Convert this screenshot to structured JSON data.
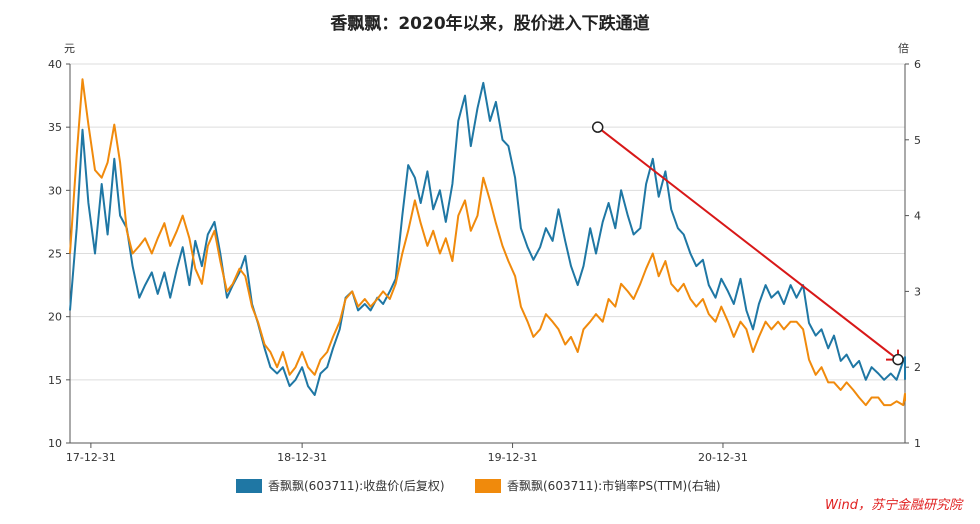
{
  "chart_data": {
    "type": "line",
    "title": "香飘飘：2020年以来，股价进入下跌通道",
    "left_axis": {
      "unit": "元",
      "ylim": [
        10,
        40
      ],
      "ticks": [
        10,
        15,
        20,
        25,
        30,
        35,
        40
      ]
    },
    "right_axis": {
      "unit": "倍",
      "ylim": [
        1,
        6
      ],
      "ticks": [
        1,
        2,
        3,
        4,
        5,
        6
      ]
    },
    "x_ticks": [
      {
        "label": "17-12-31",
        "t": 0.025
      },
      {
        "label": "18-12-31",
        "t": 0.278
      },
      {
        "label": "19-12-31",
        "t": 0.53
      },
      {
        "label": "20-12-31",
        "t": 0.782
      }
    ],
    "series": [
      {
        "name": "香飘飘(603711):收盘价(后复权)",
        "axis": "left",
        "color": "#1f77a4",
        "points": [
          [
            0.0,
            20.5
          ],
          [
            0.008,
            27.0
          ],
          [
            0.015,
            34.8
          ],
          [
            0.022,
            29.0
          ],
          [
            0.03,
            25.0
          ],
          [
            0.038,
            30.5
          ],
          [
            0.045,
            26.5
          ],
          [
            0.053,
            32.5
          ],
          [
            0.06,
            28.0
          ],
          [
            0.068,
            27.0
          ],
          [
            0.075,
            24.0
          ],
          [
            0.083,
            21.5
          ],
          [
            0.09,
            22.5
          ],
          [
            0.098,
            23.5
          ],
          [
            0.105,
            21.8
          ],
          [
            0.113,
            23.5
          ],
          [
            0.12,
            21.5
          ],
          [
            0.128,
            23.8
          ],
          [
            0.135,
            25.5
          ],
          [
            0.143,
            22.5
          ],
          [
            0.15,
            26.0
          ],
          [
            0.158,
            24.0
          ],
          [
            0.165,
            26.5
          ],
          [
            0.173,
            27.5
          ],
          [
            0.18,
            25.0
          ],
          [
            0.188,
            21.5
          ],
          [
            0.195,
            22.5
          ],
          [
            0.203,
            23.5
          ],
          [
            0.21,
            24.8
          ],
          [
            0.218,
            21.0
          ],
          [
            0.225,
            19.5
          ],
          [
            0.233,
            17.5
          ],
          [
            0.24,
            16.0
          ],
          [
            0.248,
            15.5
          ],
          [
            0.255,
            16.0
          ],
          [
            0.263,
            14.5
          ],
          [
            0.27,
            15.0
          ],
          [
            0.278,
            16.0
          ],
          [
            0.285,
            14.5
          ],
          [
            0.293,
            13.8
          ],
          [
            0.3,
            15.5
          ],
          [
            0.308,
            16.0
          ],
          [
            0.315,
            17.5
          ],
          [
            0.323,
            19.0
          ],
          [
            0.33,
            21.5
          ],
          [
            0.338,
            22.0
          ],
          [
            0.345,
            20.5
          ],
          [
            0.353,
            21.0
          ],
          [
            0.36,
            20.5
          ],
          [
            0.368,
            21.5
          ],
          [
            0.375,
            21.0
          ],
          [
            0.383,
            22.0
          ],
          [
            0.39,
            23.0
          ],
          [
            0.398,
            28.0
          ],
          [
            0.405,
            32.0
          ],
          [
            0.413,
            31.0
          ],
          [
            0.42,
            29.0
          ],
          [
            0.428,
            31.5
          ],
          [
            0.435,
            28.5
          ],
          [
            0.443,
            30.0
          ],
          [
            0.45,
            27.5
          ],
          [
            0.458,
            30.5
          ],
          [
            0.465,
            35.5
          ],
          [
            0.473,
            37.5
          ],
          [
            0.48,
            33.5
          ],
          [
            0.488,
            36.5
          ],
          [
            0.495,
            38.5
          ],
          [
            0.503,
            35.5
          ],
          [
            0.51,
            37.0
          ],
          [
            0.518,
            34.0
          ],
          [
            0.525,
            33.5
          ],
          [
            0.533,
            31.0
          ],
          [
            0.54,
            27.0
          ],
          [
            0.548,
            25.5
          ],
          [
            0.555,
            24.5
          ],
          [
            0.563,
            25.5
          ],
          [
            0.57,
            27.0
          ],
          [
            0.578,
            26.0
          ],
          [
            0.585,
            28.5
          ],
          [
            0.593,
            26.0
          ],
          [
            0.6,
            24.0
          ],
          [
            0.608,
            22.5
          ],
          [
            0.615,
            24.0
          ],
          [
            0.623,
            27.0
          ],
          [
            0.63,
            25.0
          ],
          [
            0.638,
            27.5
          ],
          [
            0.645,
            29.0
          ],
          [
            0.653,
            27.0
          ],
          [
            0.66,
            30.0
          ],
          [
            0.668,
            28.0
          ],
          [
            0.675,
            26.5
          ],
          [
            0.683,
            27.0
          ],
          [
            0.69,
            30.5
          ],
          [
            0.698,
            32.5
          ],
          [
            0.705,
            29.5
          ],
          [
            0.713,
            31.5
          ],
          [
            0.72,
            28.5
          ],
          [
            0.728,
            27.0
          ],
          [
            0.735,
            26.5
          ],
          [
            0.743,
            25.0
          ],
          [
            0.75,
            24.0
          ],
          [
            0.758,
            24.5
          ],
          [
            0.765,
            22.5
          ],
          [
            0.773,
            21.5
          ],
          [
            0.78,
            23.0
          ],
          [
            0.788,
            22.0
          ],
          [
            0.795,
            21.0
          ],
          [
            0.803,
            23.0
          ],
          [
            0.81,
            20.5
          ],
          [
            0.818,
            19.0
          ],
          [
            0.825,
            21.0
          ],
          [
            0.833,
            22.5
          ],
          [
            0.84,
            21.5
          ],
          [
            0.848,
            22.0
          ],
          [
            0.855,
            21.0
          ],
          [
            0.863,
            22.5
          ],
          [
            0.87,
            21.5
          ],
          [
            0.878,
            22.5
          ],
          [
            0.885,
            19.5
          ],
          [
            0.893,
            18.5
          ],
          [
            0.9,
            19.0
          ],
          [
            0.908,
            17.5
          ],
          [
            0.915,
            18.5
          ],
          [
            0.923,
            16.5
          ],
          [
            0.93,
            17.0
          ],
          [
            0.938,
            16.0
          ],
          [
            0.945,
            16.5
          ],
          [
            0.953,
            15.0
          ],
          [
            0.96,
            16.0
          ],
          [
            0.968,
            15.5
          ],
          [
            0.975,
            15.0
          ],
          [
            0.983,
            15.5
          ],
          [
            0.99,
            15.0
          ],
          [
            0.998,
            16.5
          ],
          [
            1.005,
            16.8
          ],
          [
            1.013,
            15.0
          ]
        ]
      },
      {
        "name": "香飘飘(603711):市销率PS(TTM)(右轴)",
        "axis": "right",
        "color": "#f08a0c",
        "points": [
          [
            0.0,
            3.5
          ],
          [
            0.008,
            4.8
          ],
          [
            0.015,
            5.8
          ],
          [
            0.022,
            5.2
          ],
          [
            0.03,
            4.6
          ],
          [
            0.038,
            4.5
          ],
          [
            0.045,
            4.7
          ],
          [
            0.053,
            5.2
          ],
          [
            0.06,
            4.7
          ],
          [
            0.068,
            3.8
          ],
          [
            0.075,
            3.5
          ],
          [
            0.083,
            3.6
          ],
          [
            0.09,
            3.7
          ],
          [
            0.098,
            3.5
          ],
          [
            0.105,
            3.7
          ],
          [
            0.113,
            3.9
          ],
          [
            0.12,
            3.6
          ],
          [
            0.128,
            3.8
          ],
          [
            0.135,
            4.0
          ],
          [
            0.143,
            3.7
          ],
          [
            0.15,
            3.3
          ],
          [
            0.158,
            3.1
          ],
          [
            0.165,
            3.6
          ],
          [
            0.173,
            3.8
          ],
          [
            0.18,
            3.4
          ],
          [
            0.188,
            3.0
          ],
          [
            0.195,
            3.1
          ],
          [
            0.203,
            3.3
          ],
          [
            0.21,
            3.2
          ],
          [
            0.218,
            2.8
          ],
          [
            0.225,
            2.6
          ],
          [
            0.233,
            2.3
          ],
          [
            0.24,
            2.2
          ],
          [
            0.248,
            2.0
          ],
          [
            0.255,
            2.2
          ],
          [
            0.263,
            1.9
          ],
          [
            0.27,
            2.0
          ],
          [
            0.278,
            2.2
          ],
          [
            0.285,
            2.0
          ],
          [
            0.293,
            1.9
          ],
          [
            0.3,
            2.1
          ],
          [
            0.308,
            2.2
          ],
          [
            0.315,
            2.4
          ],
          [
            0.323,
            2.6
          ],
          [
            0.33,
            2.9
          ],
          [
            0.338,
            3.0
          ],
          [
            0.345,
            2.8
          ],
          [
            0.353,
            2.9
          ],
          [
            0.36,
            2.8
          ],
          [
            0.368,
            2.9
          ],
          [
            0.375,
            3.0
          ],
          [
            0.383,
            2.9
          ],
          [
            0.39,
            3.1
          ],
          [
            0.398,
            3.5
          ],
          [
            0.405,
            3.8
          ],
          [
            0.413,
            4.2
          ],
          [
            0.42,
            3.9
          ],
          [
            0.428,
            3.6
          ],
          [
            0.435,
            3.8
          ],
          [
            0.443,
            3.5
          ],
          [
            0.45,
            3.7
          ],
          [
            0.458,
            3.4
          ],
          [
            0.465,
            4.0
          ],
          [
            0.473,
            4.2
          ],
          [
            0.48,
            3.8
          ],
          [
            0.488,
            4.0
          ],
          [
            0.495,
            4.5
          ],
          [
            0.503,
            4.2
          ],
          [
            0.51,
            3.9
          ],
          [
            0.518,
            3.6
          ],
          [
            0.525,
            3.4
          ],
          [
            0.533,
            3.2
          ],
          [
            0.54,
            2.8
          ],
          [
            0.548,
            2.6
          ],
          [
            0.555,
            2.4
          ],
          [
            0.563,
            2.5
          ],
          [
            0.57,
            2.7
          ],
          [
            0.578,
            2.6
          ],
          [
            0.585,
            2.5
          ],
          [
            0.593,
            2.3
          ],
          [
            0.6,
            2.4
          ],
          [
            0.608,
            2.2
          ],
          [
            0.615,
            2.5
          ],
          [
            0.623,
            2.6
          ],
          [
            0.63,
            2.7
          ],
          [
            0.638,
            2.6
          ],
          [
            0.645,
            2.9
          ],
          [
            0.653,
            2.8
          ],
          [
            0.66,
            3.1
          ],
          [
            0.668,
            3.0
          ],
          [
            0.675,
            2.9
          ],
          [
            0.683,
            3.1
          ],
          [
            0.69,
            3.3
          ],
          [
            0.698,
            3.5
          ],
          [
            0.705,
            3.2
          ],
          [
            0.713,
            3.4
          ],
          [
            0.72,
            3.1
          ],
          [
            0.728,
            3.0
          ],
          [
            0.735,
            3.1
          ],
          [
            0.743,
            2.9
          ],
          [
            0.75,
            2.8
          ],
          [
            0.758,
            2.9
          ],
          [
            0.765,
            2.7
          ],
          [
            0.773,
            2.6
          ],
          [
            0.78,
            2.8
          ],
          [
            0.788,
            2.6
          ],
          [
            0.795,
            2.4
          ],
          [
            0.803,
            2.6
          ],
          [
            0.81,
            2.5
          ],
          [
            0.818,
            2.2
          ],
          [
            0.825,
            2.4
          ],
          [
            0.833,
            2.6
          ],
          [
            0.84,
            2.5
          ],
          [
            0.848,
            2.6
          ],
          [
            0.855,
            2.5
          ],
          [
            0.863,
            2.6
          ],
          [
            0.87,
            2.6
          ],
          [
            0.878,
            2.5
          ],
          [
            0.885,
            2.1
          ],
          [
            0.893,
            1.9
          ],
          [
            0.9,
            2.0
          ],
          [
            0.908,
            1.8
          ],
          [
            0.915,
            1.8
          ],
          [
            0.923,
            1.7
          ],
          [
            0.93,
            1.8
          ],
          [
            0.938,
            1.7
          ],
          [
            0.945,
            1.6
          ],
          [
            0.953,
            1.5
          ],
          [
            0.96,
            1.6
          ],
          [
            0.968,
            1.6
          ],
          [
            0.975,
            1.5
          ],
          [
            0.983,
            1.5
          ],
          [
            0.99,
            1.55
          ],
          [
            0.998,
            1.5
          ],
          [
            1.005,
            1.65
          ],
          [
            1.013,
            1.55
          ]
        ]
      }
    ],
    "trend_line": {
      "color": "#d81818",
      "from": [
        0.632,
        35.0
      ],
      "to": [
        1.005,
        16.6
      ]
    }
  },
  "source_text": "Wind，苏宁金融研究院"
}
